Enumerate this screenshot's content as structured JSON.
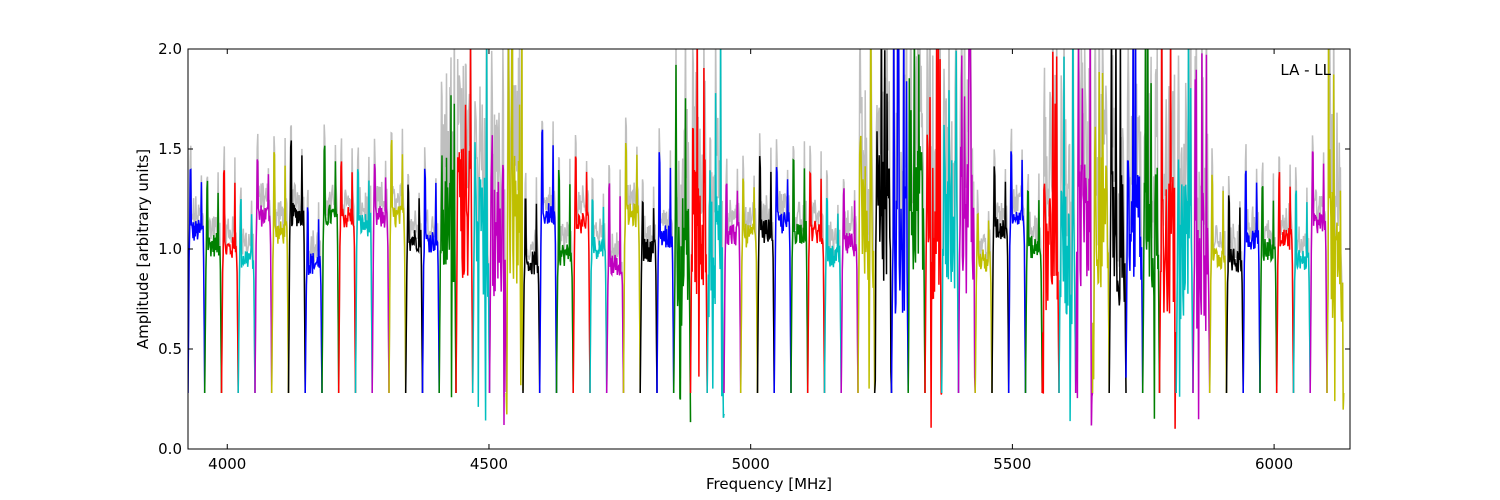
{
  "chart_data": {
    "type": "line",
    "title": "",
    "xlabel": "Frequency [MHz]",
    "ylabel": "Amplitude [arbitrary units]",
    "xlim": [
      3925,
      6145
    ],
    "ylim": [
      0.0,
      2.0
    ],
    "xticks": [
      4000,
      4500,
      5000,
      5500,
      6000
    ],
    "yticks": [
      0.0,
      0.5,
      1.0,
      1.5,
      2.0
    ],
    "ytick_labels": [
      "0.0",
      "0.5",
      "1.0",
      "1.5",
      "2.0"
    ],
    "grid": false,
    "annotation": "LA - LL",
    "annotation_position": "top-right",
    "background_trace_color": "#bfbfbf",
    "color_cycle": [
      "#0000ff",
      "#008000",
      "#ff0000",
      "#00bfbf",
      "#bf00bf",
      "#bfbf00",
      "#000000"
    ],
    "channel_width_mhz": 32,
    "first_channel_start_mhz": 3925,
    "channel_count": 69
  }
}
